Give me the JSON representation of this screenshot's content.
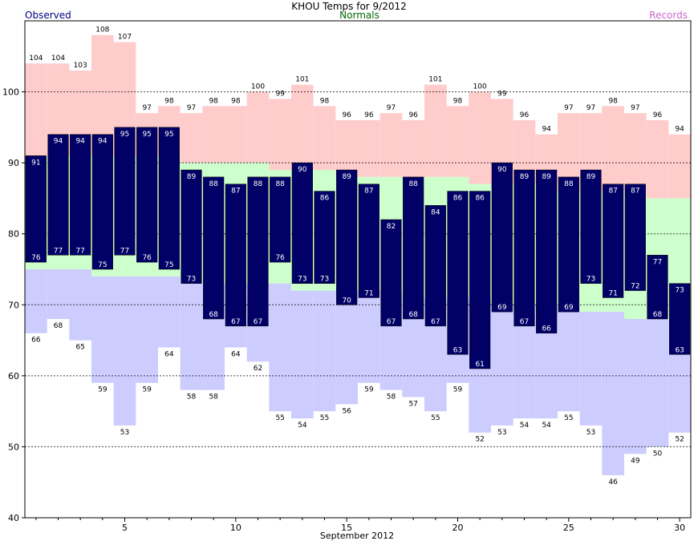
{
  "chart_data": {
    "type": "bar",
    "title": "KHOU Temps for 9/2012",
    "xlabel": "September 2012",
    "ylabel": "",
    "ylim": [
      40,
      110
    ],
    "xlim": [
      0.5,
      30.5
    ],
    "yticks": [
      40,
      50,
      60,
      70,
      80,
      90,
      100
    ],
    "xticks": [
      5,
      10,
      15,
      20,
      25,
      30
    ],
    "grid": "horizontal dashed at 50, 60, 70, 80, 90, 100",
    "legend": {
      "observed": "Observed",
      "normals": "Normals",
      "records": "Records"
    },
    "colors": {
      "observed": "#000066",
      "normals": "#ccffcc",
      "record_high": "#ffcccc",
      "record_low": "#ccccff",
      "legend_observed": "#000080",
      "legend_normals": "#006600",
      "legend_records": "#cc66cc"
    },
    "days": [
      1,
      2,
      3,
      4,
      5,
      6,
      7,
      8,
      9,
      10,
      11,
      12,
      13,
      14,
      15,
      16,
      17,
      18,
      19,
      20,
      21,
      22,
      23,
      24,
      25,
      26,
      27,
      28,
      29,
      30
    ],
    "series": [
      {
        "name": "Observed high",
        "values": [
          91,
          94,
          94,
          94,
          95,
          95,
          95,
          89,
          88,
          87,
          88,
          88,
          90,
          86,
          89,
          87,
          82,
          88,
          84,
          86,
          86,
          90,
          89,
          89,
          88,
          89,
          87,
          87,
          77,
          73
        ]
      },
      {
        "name": "Observed low",
        "values": [
          76,
          77,
          77,
          75,
          77,
          76,
          75,
          73,
          68,
          67,
          67,
          76,
          73,
          73,
          70,
          71,
          67,
          68,
          67,
          63,
          61,
          69,
          67,
          66,
          69,
          73,
          71,
          72,
          68,
          63
        ]
      },
      {
        "name": "Normal high",
        "values": [
          91,
          91,
          91,
          91,
          91,
          91,
          91,
          90,
          90,
          90,
          90,
          89,
          89,
          89,
          88,
          88,
          88,
          88,
          88,
          88,
          87,
          87,
          87,
          87,
          86,
          86,
          86,
          86,
          85,
          85
        ]
      },
      {
        "name": "Normal low",
        "values": [
          75,
          75,
          75,
          74,
          74,
          74,
          74,
          73,
          73,
          73,
          73,
          73,
          72,
          72,
          72,
          72,
          72,
          71,
          71,
          71,
          71,
          70,
          70,
          70,
          70,
          69,
          69,
          68,
          68,
          68
        ]
      },
      {
        "name": "Record high",
        "values": [
          104,
          104,
          103,
          108,
          107,
          97,
          98,
          97,
          98,
          98,
          100,
          99,
          101,
          98,
          96,
          96,
          97,
          96,
          101,
          98,
          100,
          99,
          96,
          94,
          97,
          97,
          98,
          97,
          96,
          94
        ]
      },
      {
        "name": "Record low",
        "values": [
          66,
          68,
          65,
          59,
          53,
          59,
          64,
          58,
          58,
          64,
          62,
          55,
          54,
          55,
          56,
          59,
          58,
          57,
          55,
          59,
          52,
          53,
          54,
          54,
          55,
          53,
          46,
          49,
          50,
          52
        ]
      }
    ]
  }
}
